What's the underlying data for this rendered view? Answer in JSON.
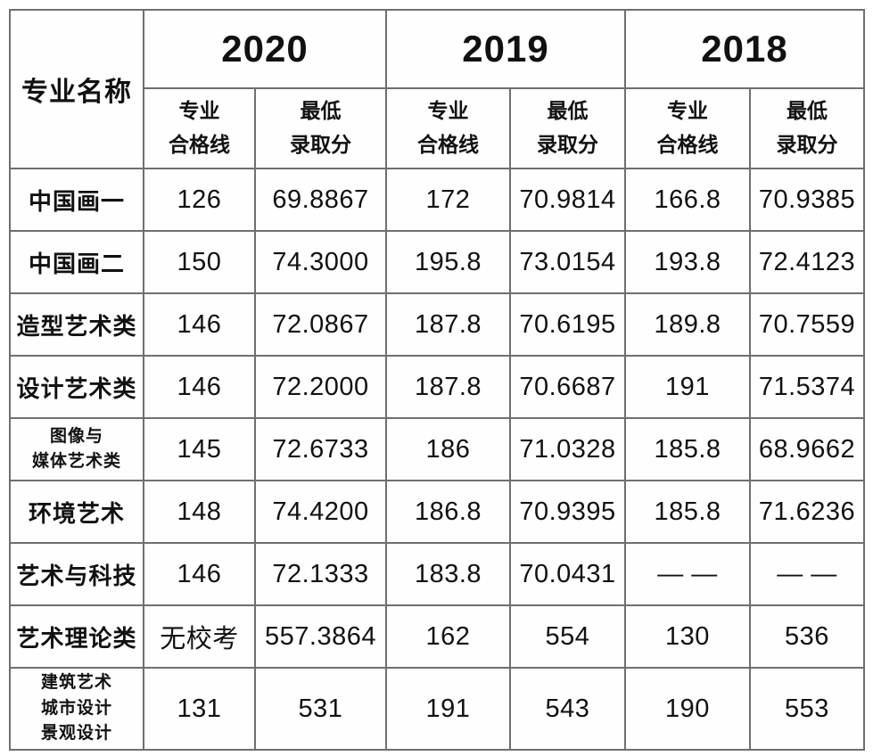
{
  "table": {
    "corner_header": "专业名称",
    "year_groups": [
      {
        "year": "2020",
        "sub_cols": [
          "专业\n合格线",
          "最低\n录取分"
        ]
      },
      {
        "year": "2019",
        "sub_cols": [
          "专业\n合格线",
          "最低\n录取分"
        ]
      },
      {
        "year": "2018",
        "sub_cols": [
          "专业\n合格线",
          "最低\n录取分"
        ]
      }
    ],
    "rows": [
      {
        "name": "中国画一",
        "values": [
          "126",
          "69.8867",
          "172",
          "70.9814",
          "166.8",
          "70.9385"
        ]
      },
      {
        "name": "中国画二",
        "values": [
          "150",
          "74.3000",
          "195.8",
          "73.0154",
          "193.8",
          "72.4123"
        ]
      },
      {
        "name": "造型艺术类",
        "values": [
          "146",
          "72.0867",
          "187.8",
          "70.6195",
          "189.8",
          "70.7559"
        ]
      },
      {
        "name": "设计艺术类",
        "values": [
          "146",
          "72.2000",
          "187.8",
          "70.6687",
          "191",
          "71.5374"
        ]
      },
      {
        "name": "图像与\n媒体艺术类",
        "values": [
          "145",
          "72.6733",
          "186",
          "71.0328",
          "185.8",
          "68.9662"
        ]
      },
      {
        "name": "环境艺术",
        "values": [
          "148",
          "74.4200",
          "186.8",
          "70.9395",
          "185.8",
          "71.6236"
        ]
      },
      {
        "name": "艺术与科技",
        "values": [
          "146",
          "72.1333",
          "183.8",
          "70.0431",
          "— —",
          "— —"
        ]
      },
      {
        "name": "艺术理论类",
        "values": [
          "无校考",
          "557.3864",
          "162",
          "554",
          "130",
          "536"
        ]
      },
      {
        "name": "建筑艺术\n城市设计\n景观设计",
        "values": [
          "131",
          "531",
          "191",
          "543",
          "190",
          "553"
        ]
      }
    ]
  }
}
